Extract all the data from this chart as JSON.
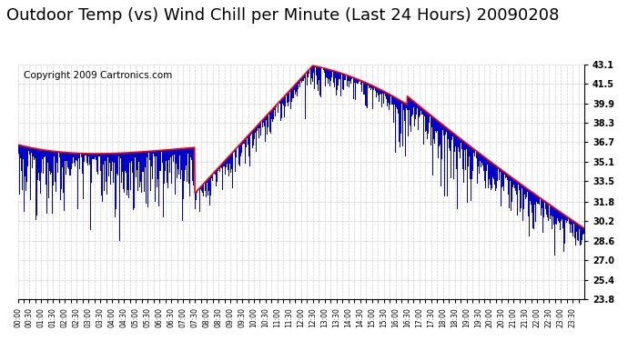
{
  "title": "Outdoor Temp (vs) Wind Chill per Minute (Last 24 Hours) 20090208",
  "copyright": "Copyright 2009 Cartronics.com",
  "yticks": [
    23.8,
    25.4,
    27.0,
    28.6,
    30.2,
    31.8,
    33.5,
    35.1,
    36.7,
    38.3,
    39.9,
    41.5,
    43.1
  ],
  "ymin": 23.8,
  "ymax": 43.1,
  "bg_color": "#ffffff",
  "grid_color": "#cccccc",
  "bar_color": "#0000cc",
  "line_color": "#ff0000",
  "title_fontsize": 13,
  "copyright_fontsize": 7.5,
  "n_minutes": 1440
}
